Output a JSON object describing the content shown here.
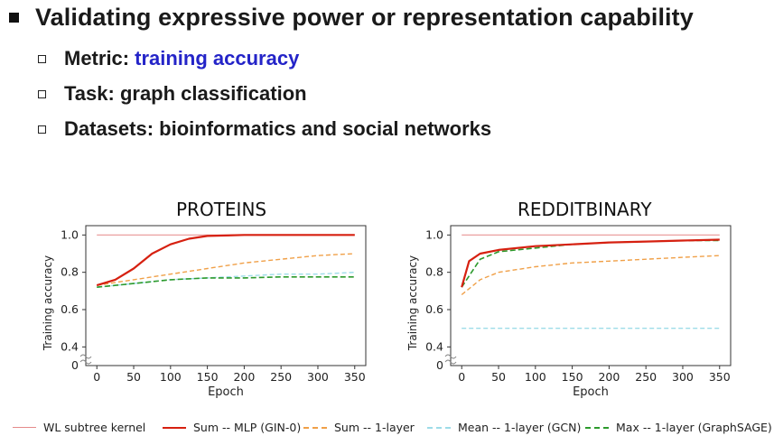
{
  "slide": {
    "title": "Validating expressive power or representation capability",
    "bullets": [
      {
        "label": "Metric:",
        "value": "training accuracy"
      },
      {
        "label": "Task: graph classification",
        "value": ""
      },
      {
        "label": "Datasets: bioinformatics and social networks",
        "value": ""
      }
    ]
  },
  "colors": {
    "wl": "#e58a8a",
    "sum_mlp": "#d62010",
    "sum_1layer": "#f0a048",
    "mean_1layer": "#9ddce8",
    "max_1layer": "#2c9a2c",
    "accent": "#2424c8"
  },
  "legend": [
    {
      "name": "WL subtree kernel",
      "key": "wl"
    },
    {
      "name": "Sum -- MLP (GIN-0)",
      "key": "sum_mlp"
    },
    {
      "name": "Sum -- 1-layer",
      "key": "sum_1layer"
    },
    {
      "name": "Mean -- 1-layer (GCN)",
      "key": "mean_1layer"
    },
    {
      "name": "Max -- 1-layer (GraphSAGE)",
      "key": "max_1layer"
    }
  ],
  "chart_data": [
    {
      "type": "line",
      "title": "PROTEINS",
      "xlabel": "Epoch",
      "ylabel": "Training accuracy",
      "xlim": [
        -15,
        365
      ],
      "ylim": [
        0.3,
        1.05
      ],
      "xticks": [
        "0",
        "50",
        "100",
        "150",
        "200",
        "250",
        "300",
        "350"
      ],
      "yticks": [
        "0.4",
        "0.6",
        "0.8",
        "1.0"
      ],
      "y_origin_label": "0",
      "grid": false,
      "series": [
        {
          "name": "WL subtree kernel",
          "key": "wl",
          "x": [
            0,
            350
          ],
          "y": [
            1.0,
            1.0
          ]
        },
        {
          "name": "Sum -- MLP (GIN-0)",
          "key": "sum_mlp",
          "x": [
            0,
            25,
            50,
            75,
            100,
            125,
            150,
            200,
            250,
            300,
            350
          ],
          "y": [
            0.73,
            0.76,
            0.82,
            0.9,
            0.95,
            0.98,
            0.995,
            1.0,
            1.0,
            1.0,
            1.0
          ]
        },
        {
          "name": "Sum -- 1-layer",
          "key": "sum_1layer",
          "x": [
            0,
            50,
            100,
            150,
            200,
            250,
            300,
            350
          ],
          "y": [
            0.73,
            0.76,
            0.79,
            0.82,
            0.85,
            0.87,
            0.89,
            0.9
          ]
        },
        {
          "name": "Mean -- 1-layer (GCN)",
          "key": "mean_1layer",
          "x": [
            0,
            50,
            100,
            150,
            200,
            250,
            300,
            350
          ],
          "y": [
            0.72,
            0.74,
            0.76,
            0.77,
            0.78,
            0.79,
            0.79,
            0.8
          ]
        },
        {
          "name": "Max -- 1-layer (GraphSAGE)",
          "key": "max_1layer",
          "x": [
            0,
            50,
            100,
            150,
            200,
            250,
            300,
            350
          ],
          "y": [
            0.72,
            0.74,
            0.76,
            0.77,
            0.77,
            0.775,
            0.775,
            0.775
          ]
        }
      ]
    },
    {
      "type": "line",
      "title": "REDDITBINARY",
      "xlabel": "Epoch",
      "ylabel": "Training accuracy",
      "xlim": [
        -15,
        365
      ],
      "ylim": [
        0.3,
        1.05
      ],
      "xticks": [
        "0",
        "50",
        "100",
        "150",
        "200",
        "250",
        "300",
        "350"
      ],
      "yticks": [
        "0.4",
        "0.6",
        "0.8",
        "1.0"
      ],
      "y_origin_label": "0",
      "grid": false,
      "series": [
        {
          "name": "WL subtree kernel",
          "key": "wl",
          "x": [
            0,
            350
          ],
          "y": [
            1.0,
            1.0
          ]
        },
        {
          "name": "Sum -- MLP (GIN-0)",
          "key": "sum_mlp",
          "x": [
            0,
            10,
            25,
            50,
            100,
            150,
            200,
            250,
            300,
            350
          ],
          "y": [
            0.72,
            0.86,
            0.9,
            0.92,
            0.94,
            0.95,
            0.96,
            0.965,
            0.97,
            0.975
          ]
        },
        {
          "name": "Sum -- 1-layer",
          "key": "sum_1layer",
          "x": [
            0,
            25,
            50,
            100,
            150,
            200,
            250,
            300,
            350
          ],
          "y": [
            0.68,
            0.76,
            0.8,
            0.83,
            0.85,
            0.86,
            0.87,
            0.88,
            0.89
          ]
        },
        {
          "name": "Mean -- 1-layer (GCN)",
          "key": "mean_1layer",
          "x": [
            0,
            350
          ],
          "y": [
            0.5,
            0.5
          ]
        },
        {
          "name": "Max -- 1-layer (GraphSAGE)",
          "key": "max_1layer",
          "x": [
            0,
            25,
            50,
            100,
            150,
            200,
            250,
            300,
            350
          ],
          "y": [
            0.72,
            0.87,
            0.91,
            0.93,
            0.95,
            0.96,
            0.965,
            0.97,
            0.97
          ]
        }
      ]
    }
  ]
}
